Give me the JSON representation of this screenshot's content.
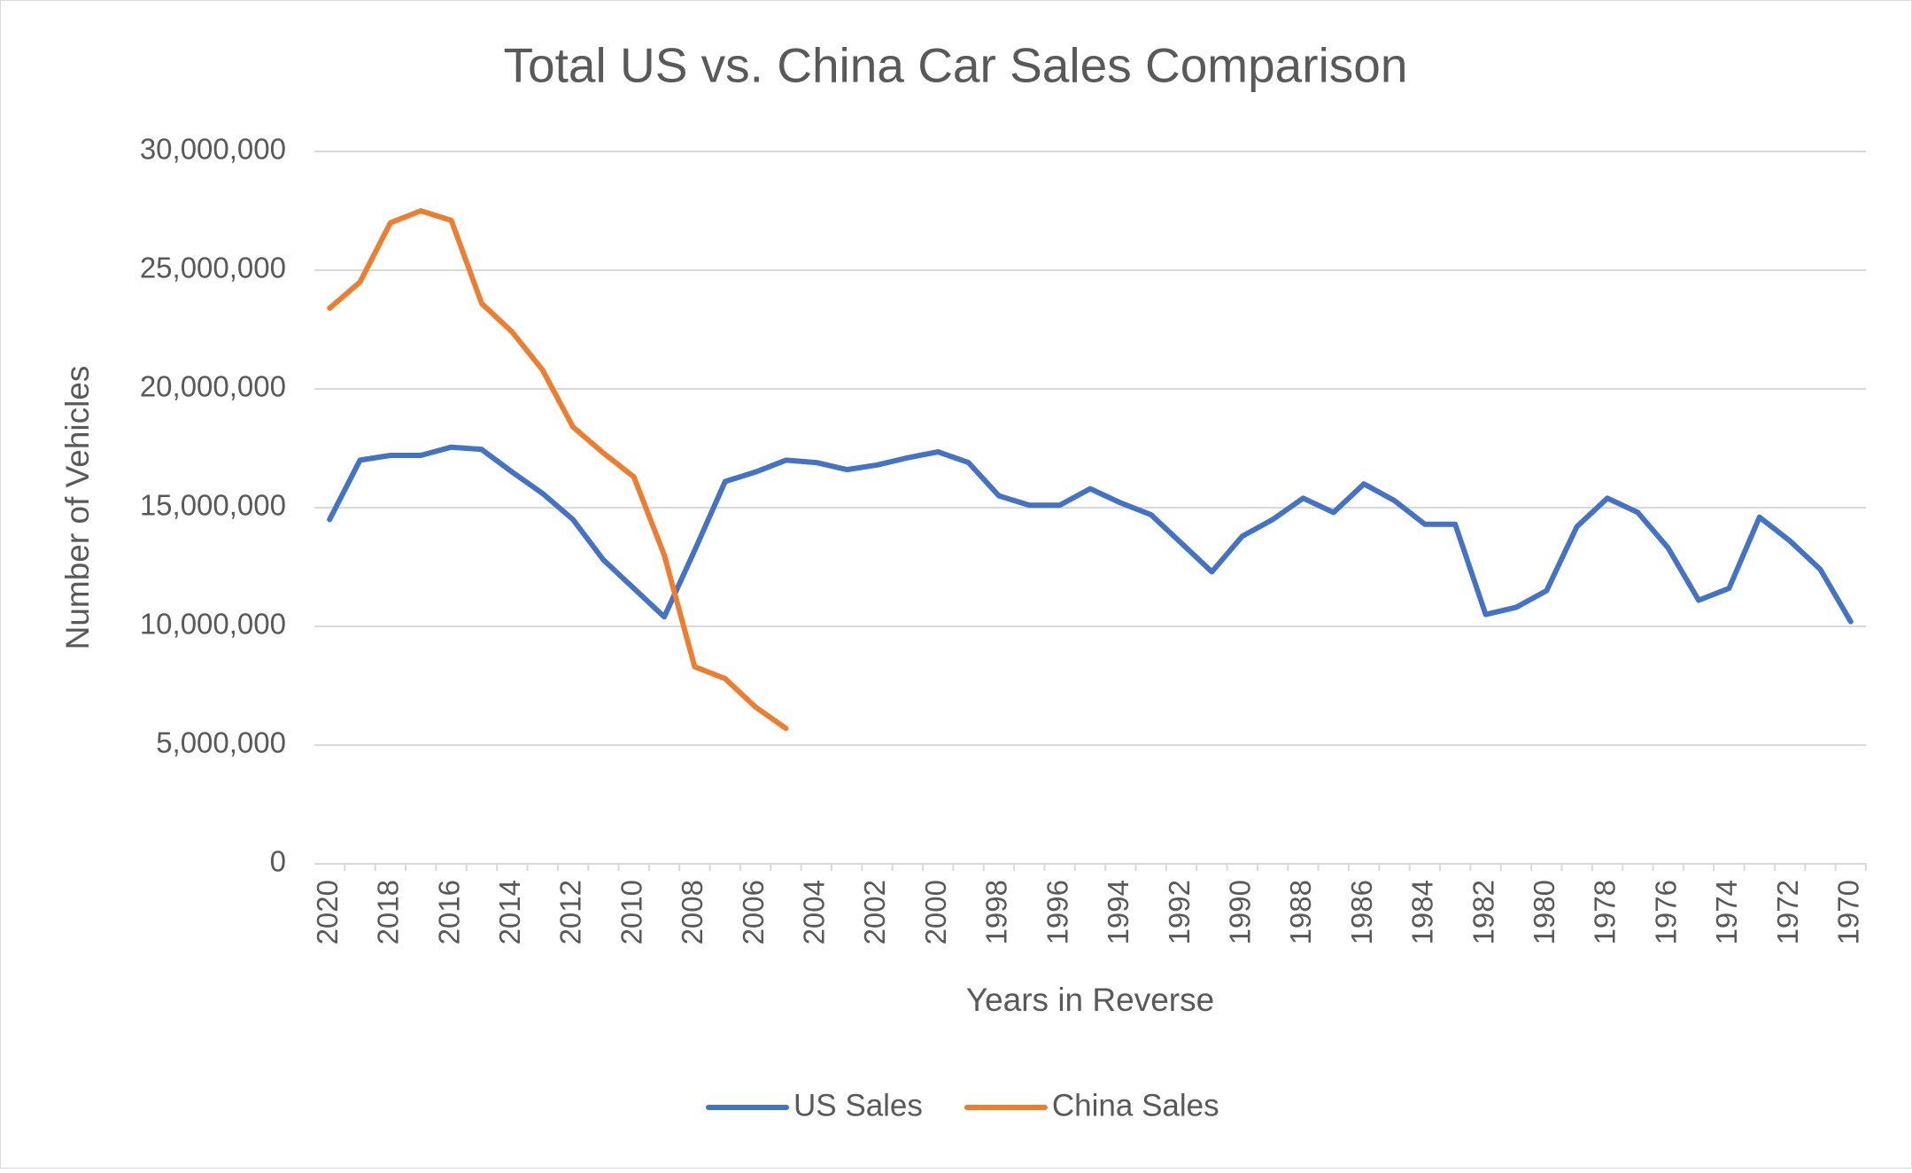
{
  "chart_data": {
    "type": "line",
    "title": "Total US vs. China Car Sales Comparison",
    "x_label": "Years in Reverse",
    "y_label": "Number of Vehicles",
    "categories": [
      "2020",
      null,
      "2018",
      null,
      "2016",
      null,
      "2014",
      null,
      "2012",
      null,
      "2010",
      null,
      "2008",
      null,
      "2006",
      null,
      "2004",
      null,
      "2002",
      null,
      "2000",
      null,
      "1998",
      null,
      "1996",
      null,
      "1994",
      null,
      "1992",
      null,
      "1990",
      null,
      "1988",
      null,
      "1986",
      null,
      "1984",
      null,
      "1982",
      null,
      "1980",
      null,
      "1978",
      null,
      "1976",
      null,
      "1974",
      null,
      "1972",
      null,
      "1970"
    ],
    "series": [
      {
        "name": "US Sales",
        "color": "#4472c4",
        "values": [
          14500000,
          17000000,
          17200000,
          17200000,
          17550000,
          17450000,
          16500000,
          15600000,
          14500000,
          12800000,
          11600000,
          10400000,
          13200000,
          16100000,
          16500000,
          17000000,
          16900000,
          16600000,
          16800000,
          17100000,
          17350000,
          16900000,
          15500000,
          15100000,
          15100000,
          15800000,
          15200000,
          14700000,
          13500000,
          12300000,
          13800000,
          14500000,
          15400000,
          14800000,
          16000000,
          15300000,
          14300000,
          14300000,
          10500000,
          10800000,
          11500000,
          14200000,
          15400000,
          14800000,
          13300000,
          11100000,
          11600000,
          14600000,
          13600000,
          12400000,
          10200000
        ]
      },
      {
        "name": "China Sales",
        "color": "#ed7d31",
        "values": [
          23400000,
          24500000,
          27000000,
          27500000,
          27100000,
          23600000,
          22400000,
          20800000,
          18400000,
          17300000,
          16300000,
          13000000,
          8300000,
          7800000,
          6600000,
          5700000,
          null,
          null,
          null,
          null,
          null,
          null,
          null,
          null,
          null,
          null,
          null,
          null,
          null,
          null,
          null,
          null,
          null,
          null,
          null,
          null,
          null,
          null,
          null,
          null,
          null,
          null,
          null,
          null,
          null,
          null,
          null,
          null,
          null,
          null,
          null
        ]
      }
    ],
    "ylim": [
      0,
      30000000
    ],
    "yticks": [
      0,
      {
        "value": 5000000,
        "label": "5,000,000"
      },
      {
        "value": 10000000,
        "label": "10,000,000"
      },
      {
        "value": 15000000,
        "label": "15,000,000"
      },
      {
        "value": 20000000,
        "label": "20,000,000"
      },
      {
        "value": 25000000,
        "label": "25,000,000"
      },
      {
        "value": 30000000,
        "label": "30,000,000"
      }
    ],
    "grid": true,
    "legend": "bottom"
  }
}
